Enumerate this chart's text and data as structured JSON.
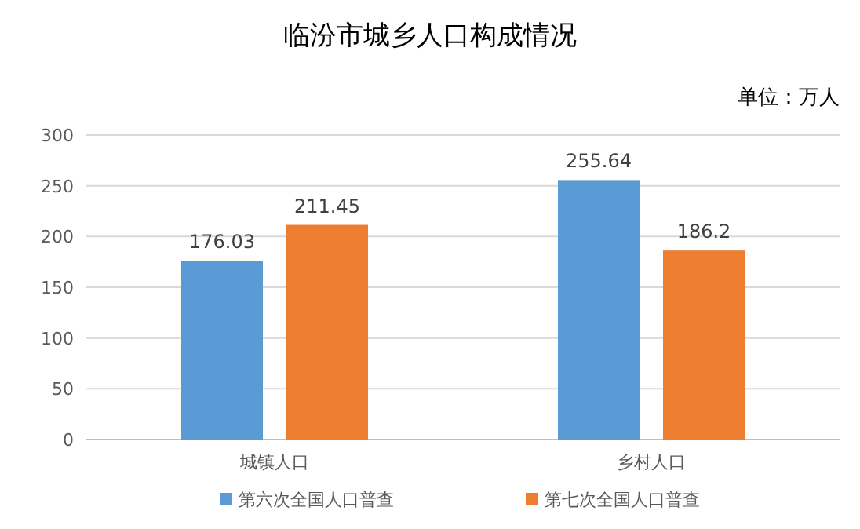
{
  "chart_data": {
    "type": "bar",
    "title": "临汾市城乡人口构成情况",
    "annotations": [
      "单位：万人"
    ],
    "categories": [
      "城镇人口",
      "乡村人口"
    ],
    "series": [
      {
        "name": "第六次全国人口普查",
        "color": "#5b9bd5",
        "values": [
          176.03,
          255.64
        ]
      },
      {
        "name": "第七次全国人口普查",
        "color": "#ed7d31",
        "values": [
          211.45,
          186.2
        ]
      }
    ],
    "ylim": [
      0,
      300
    ],
    "yticks": [
      0,
      50,
      100,
      150,
      200,
      250,
      300
    ],
    "grid": "y",
    "legend": "bottom",
    "data_labels": true
  }
}
